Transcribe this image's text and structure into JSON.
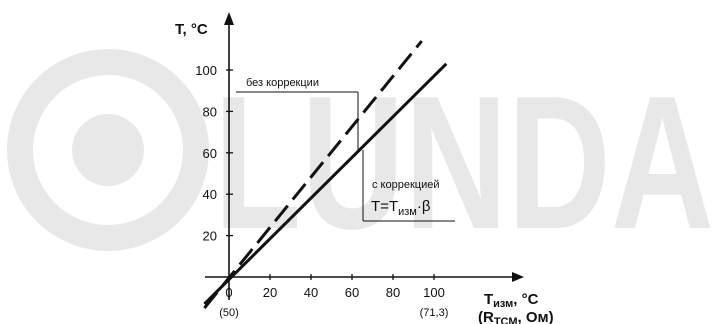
{
  "watermark": {
    "text": "LUNDA",
    "color": "#e8e8e8"
  },
  "chart_data": {
    "type": "line",
    "xlim": [
      -12,
      112
    ],
    "ylim": [
      0,
      118
    ],
    "x_ticks": [
      0,
      20,
      40,
      60,
      80,
      100
    ],
    "x_tick_labels": [
      "0",
      "20",
      "40",
      "60",
      "80",
      "100"
    ],
    "y_ticks": [
      20,
      40,
      60,
      80,
      100
    ],
    "y_tick_labels": [
      "20",
      "40",
      "60",
      "80",
      "100"
    ],
    "x_sub_labels": [
      {
        "x": 0,
        "text": "(50)"
      },
      {
        "x": 100,
        "text": "(71,3)"
      }
    ],
    "xlabel": {
      "main": "T",
      "sub": "изм",
      "unit": ", °С",
      "line2_open": "(R",
      "line2_sub": "ТСМ",
      "line2_rest": ", Ом)"
    },
    "ylabel": "T, °С",
    "series": [
      {
        "style": "dashed",
        "points": [
          [
            -12,
            -15
          ],
          [
            94,
            114
          ]
        ]
      },
      {
        "style": "solid",
        "points": [
          [
            -12,
            -13
          ],
          [
            106,
            103
          ]
        ]
      }
    ],
    "annotations": [
      {
        "text": "без коррекции",
        "x": 4,
        "y": 96
      },
      {
        "text": "с коррекцией",
        "x": 62,
        "y": 44
      }
    ],
    "formula": {
      "lead": "T",
      "eq": "=",
      "main": "T",
      "sub": "изм",
      "rest": "·β"
    },
    "colors": {
      "line": "#111111",
      "background": "#ffffff"
    }
  }
}
